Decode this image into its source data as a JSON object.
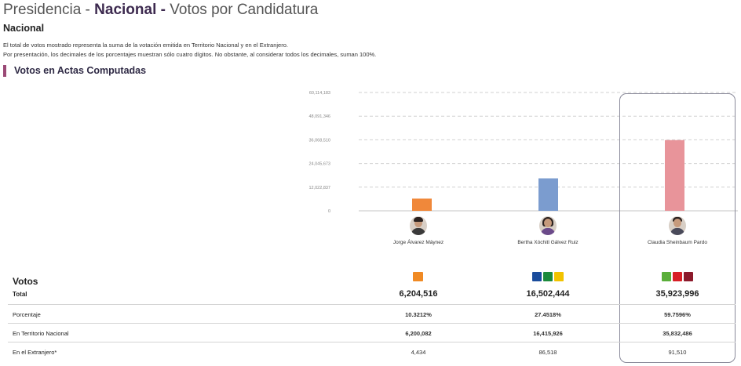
{
  "header": {
    "title_prefix": "Presidencia -",
    "title_bold": "Nacional -",
    "title_suffix": "Votos por Candidatura",
    "subtitle": "Nacional",
    "note_line1": "El total de votos mostrado representa la suma de la votación emitida en Territorio Nacional y en el Extranjero.",
    "note_line2": "Por presentación, los decimales de los porcentajes muestran sólo cuatro dígitos. No obstante, al considerar todos los decimales, suman 100%.",
    "section_title": "Votos en Actas Computadas"
  },
  "chart_data": {
    "type": "bar",
    "categories": [
      "Jorge Álvarez Máynez",
      "Bertha Xóchitl Gálvez Ruiz",
      "Claudia Sheinbaum Pardo"
    ],
    "values": [
      6204516,
      16502444,
      35923996
    ],
    "colors": [
      "#f0883a",
      "#7b9ccf",
      "#e8949a"
    ],
    "yticks": [
      "60,114,183",
      "48,091,346",
      "36,068,510",
      "24,045,673",
      "12,022,837",
      "0"
    ],
    "ytick_values": [
      60114183,
      48091346,
      36068510,
      24045673,
      12022837,
      0
    ],
    "ylim": [
      0,
      60114183
    ],
    "grid": true,
    "highlighted_category": "Claudia Sheinbaum Pardo"
  },
  "candidates": [
    {
      "name": "Jorge Álvarez Máynez",
      "avatar_icon": "candidate-photo-icon"
    },
    {
      "name": "Bertha Xóchitl Gálvez Ruiz",
      "avatar_icon": "candidate-photo-icon"
    },
    {
      "name": "Claudia Sheinbaum Pardo",
      "avatar_icon": "candidate-photo-icon"
    }
  ],
  "party_logos": [
    [
      {
        "icon": "mc-logo-icon",
        "color": "#f08a24"
      }
    ],
    [
      {
        "icon": "pan-logo-icon",
        "color": "#1a4c9c"
      },
      {
        "icon": "pri-logo-icon",
        "color": "#1c8a3c"
      },
      {
        "icon": "prd-logo-icon",
        "color": "#f2c300"
      }
    ],
    [
      {
        "icon": "pvem-logo-icon",
        "color": "#5aae3a"
      },
      {
        "icon": "pt-logo-icon",
        "color": "#d71f26"
      },
      {
        "icon": "morena-logo-icon",
        "color": "#8c1a2b"
      }
    ]
  ],
  "table": {
    "votos_heading": "Votos",
    "rows": [
      {
        "label": "Total",
        "values": [
          "6,204,516",
          "16,502,444",
          "35,923,996"
        ]
      },
      {
        "label": "Porcentaje",
        "values": [
          "10.3212%",
          "27.4518%",
          "59.7596%"
        ]
      },
      {
        "label": "En Territorio Nacional",
        "values": [
          "6,200,082",
          "16,415,926",
          "35,832,486"
        ]
      },
      {
        "label": "En el Extranjero*",
        "values": [
          "4,434",
          "86,518",
          "91,510"
        ]
      }
    ]
  }
}
